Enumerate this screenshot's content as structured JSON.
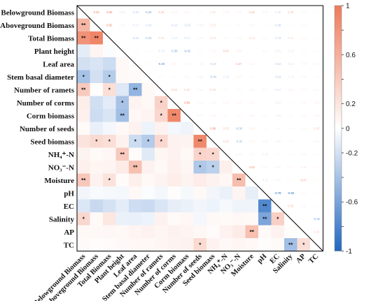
{
  "chart_data": {
    "type": "heatmap",
    "variables": [
      "Belowground Biomass",
      "Aboveground Biomass",
      "Total Biomass",
      "Plant height",
      "Leaf area",
      "Stem basal diameter",
      "Number of ramets",
      "Number of corms",
      "Corm biomass",
      "Number of seeds",
      "Seed biomass",
      "NH₄⁺-N",
      "NO₃⁻-N",
      "Moisture",
      "pH",
      "EC",
      "Salinity",
      "AP",
      "TC"
    ],
    "colorbar": {
      "min": -1,
      "max": 1,
      "ticks": [
        "1",
        "0.8",
        "0.6",
        "0.4",
        "0.2",
        "0",
        "-0.2",
        "-0.4",
        "-0.6",
        "-0.8",
        "-1"
      ],
      "low_color": "#2166c0",
      "mid_color": "#ffffff",
      "high_color": "#ee7a5a"
    },
    "upper_triangle": "coefficient labels",
    "lower_triangle": "colored cells with significance stars",
    "cells": [
      {
        "i": 1,
        "j": 0,
        "r": 0.55,
        "s": "**"
      },
      {
        "i": 2,
        "j": 0,
        "r": 0.82,
        "s": "**"
      },
      {
        "i": 2,
        "j": 1,
        "r": 0.92,
        "s": "**"
      },
      {
        "i": 3,
        "j": 0,
        "r": -0.12
      },
      {
        "i": 3,
        "j": 1,
        "r": 0.08
      },
      {
        "i": 3,
        "j": 2,
        "r": -0.02
      },
      {
        "i": 4,
        "j": 0,
        "r": -0.2
      },
      {
        "i": 4,
        "j": 1,
        "r": -0.17
      },
      {
        "i": 4,
        "j": 2,
        "r": -0.23
      },
      {
        "i": 4,
        "j": 3,
        "r": 0.05
      },
      {
        "i": 5,
        "j": 0,
        "r": -0.4,
        "s": "*"
      },
      {
        "i": 5,
        "j": 1,
        "r": -0.2
      },
      {
        "i": 5,
        "j": 2,
        "r": -0.33,
        "s": "*"
      },
      {
        "i": 5,
        "j": 3,
        "r": 0.05
      },
      {
        "i": 5,
        "j": 4,
        "r": 0.04
      },
      {
        "i": 6,
        "j": 0,
        "r": 0.4,
        "s": "**"
      },
      {
        "i": 6,
        "j": 1,
        "r": 0.02
      },
      {
        "i": 6,
        "j": 2,
        "r": 0.25,
        "s": "*"
      },
      {
        "i": 6,
        "j": 3,
        "r": -0.15
      },
      {
        "i": 6,
        "j": 4,
        "r": -0.49,
        "s": "**"
      },
      {
        "i": 6,
        "j": 5,
        "r": 0.05
      },
      {
        "i": 7,
        "j": 0,
        "r": 0.13
      },
      {
        "i": 7,
        "j": 1,
        "r": -0.21
      },
      {
        "i": 7,
        "j": 2,
        "r": -0.13
      },
      {
        "i": 7,
        "j": 3,
        "r": -0.39,
        "s": "*"
      },
      {
        "i": 7,
        "j": 4,
        "r": 0.09
      },
      {
        "i": 7,
        "j": 5,
        "r": 0.05
      },
      {
        "i": 7,
        "j": 6,
        "r": 0.34,
        "s": "*"
      },
      {
        "i": 8,
        "j": 0,
        "r": 0.11
      },
      {
        "i": 8,
        "j": 1,
        "r": -0.23
      },
      {
        "i": 8,
        "j": 2,
        "r": -0.17
      },
      {
        "i": 8,
        "j": 3,
        "r": -0.42,
        "s": "**"
      },
      {
        "i": 8,
        "j": 4,
        "r": 0.06
      },
      {
        "i": 8,
        "j": 5,
        "r": 0.08
      },
      {
        "i": 8,
        "j": 6,
        "r": 0.3,
        "s": "*"
      },
      {
        "i": 8,
        "j": 7,
        "r": 0.89,
        "s": "**"
      },
      {
        "i": 9,
        "j": 0,
        "r": 0.04
      },
      {
        "i": 9,
        "j": 1,
        "r": -0.1
      },
      {
        "i": 9,
        "j": 2,
        "r": -0.05
      },
      {
        "i": 9,
        "j": 3,
        "r": 0.05
      },
      {
        "i": 9,
        "j": 4,
        "r": 0.1
      },
      {
        "i": 9,
        "j": 5,
        "r": -0.08
      },
      {
        "i": 9,
        "j": 6,
        "r": 0.1
      },
      {
        "i": 9,
        "j": 7,
        "r": -0.05
      },
      {
        "i": 9,
        "j": 8,
        "r": -0.07
      },
      {
        "i": 10,
        "j": 0,
        "r": 0.2
      },
      {
        "i": 10,
        "j": 1,
        "r": 0.27,
        "s": "*"
      },
      {
        "i": 10,
        "j": 2,
        "r": 0.24,
        "s": "*"
      },
      {
        "i": 10,
        "j": 3,
        "r": 0.1
      },
      {
        "i": 10,
        "j": 4,
        "r": -0.23,
        "s": "*"
      },
      {
        "i": 10,
        "j": 5,
        "r": -0.34,
        "s": "*"
      },
      {
        "i": 10,
        "j": 6,
        "r": 0.29,
        "s": "*"
      },
      {
        "i": 10,
        "j": 7,
        "r": 0.1
      },
      {
        "i": 10,
        "j": 8,
        "r": 0.09
      },
      {
        "i": 10,
        "j": 9,
        "r": 0.89,
        "s": "**"
      },
      {
        "i": 11,
        "j": 0,
        "r": 0.09
      },
      {
        "i": 11,
        "j": 1,
        "r": 0.04
      },
      {
        "i": 11,
        "j": 2,
        "r": 0.06
      },
      {
        "i": 11,
        "j": 3,
        "r": 0.4,
        "s": "**"
      },
      {
        "i": 11,
        "j": 4,
        "r": 0.03
      },
      {
        "i": 11,
        "j": 5,
        "r": -0.14
      },
      {
        "i": 11,
        "j": 6,
        "r": 0.07
      },
      {
        "i": 11,
        "j": 7,
        "r": 0.1
      },
      {
        "i": 11,
        "j": 8,
        "r": 0.05
      },
      {
        "i": 11,
        "j": 9,
        "r": 0.32,
        "s": "*"
      },
      {
        "i": 11,
        "j": 10,
        "r": 0.3,
        "s": "*"
      },
      {
        "i": 12,
        "j": 0,
        "r": 0.11
      },
      {
        "i": 12,
        "j": 1,
        "r": 0.07
      },
      {
        "i": 12,
        "j": 2,
        "r": 0.08
      },
      {
        "i": 12,
        "j": 3,
        "r": 0.15
      },
      {
        "i": 12,
        "j": 4,
        "r": 0.47,
        "s": "**"
      },
      {
        "i": 12,
        "j": 5,
        "r": 0.1
      },
      {
        "i": 12,
        "j": 6,
        "r": 0.05
      },
      {
        "i": 12,
        "j": 7,
        "r": 0.11
      },
      {
        "i": 12,
        "j": 8,
        "r": 0.07
      },
      {
        "i": 12,
        "j": 9,
        "r": -0.36,
        "s": "*"
      },
      {
        "i": 12,
        "j": 10,
        "r": -0.3,
        "s": "*"
      },
      {
        "i": 12,
        "j": 11,
        "r": 0.12
      },
      {
        "i": 13,
        "j": 0,
        "r": 0.42,
        "s": "**"
      },
      {
        "i": 13,
        "j": 1,
        "r": 0.1
      },
      {
        "i": 13,
        "j": 2,
        "r": 0.22,
        "s": "*"
      },
      {
        "i": 13,
        "j": 3,
        "r": 0.03
      },
      {
        "i": 13,
        "j": 4,
        "r": 0.12
      },
      {
        "i": 13,
        "j": 5,
        "r": 0.05
      },
      {
        "i": 13,
        "j": 6,
        "r": 0.09
      },
      {
        "i": 13,
        "j": 7,
        "r": 0.13
      },
      {
        "i": 13,
        "j": 8,
        "r": 0.09
      },
      {
        "i": 13,
        "j": 9,
        "r": 0.14
      },
      {
        "i": 13,
        "j": 10,
        "r": 0.1
      },
      {
        "i": 13,
        "j": 11,
        "r": 0.06
      },
      {
        "i": 13,
        "j": 12,
        "r": 0.5,
        "s": "**"
      },
      {
        "i": 14,
        "j": 0,
        "r": -0.06
      },
      {
        "i": 14,
        "j": 1,
        "r": -0.03
      },
      {
        "i": 14,
        "j": 2,
        "r": -0.04
      },
      {
        "i": 14,
        "j": 3,
        "r": -0.05
      },
      {
        "i": 14,
        "j": 4,
        "r": 0.05
      },
      {
        "i": 14,
        "j": 5,
        "r": -0.02
      },
      {
        "i": 14,
        "j": 6,
        "r": -0.05
      },
      {
        "i": 14,
        "j": 7,
        "r": 0.02
      },
      {
        "i": 14,
        "j": 8,
        "r": -0.04
      },
      {
        "i": 14,
        "j": 9,
        "r": 0.05
      },
      {
        "i": 14,
        "j": 10,
        "r": -0.06
      },
      {
        "i": 14,
        "j": 11,
        "r": -0.09
      },
      {
        "i": 14,
        "j": 12,
        "r": 0.08
      },
      {
        "i": 14,
        "j": 13,
        "r": -0.11
      },
      {
        "i": 15,
        "j": 0,
        "r": -0.16
      },
      {
        "i": 15,
        "j": 1,
        "r": -0.25
      },
      {
        "i": 15,
        "j": 2,
        "r": -0.19
      },
      {
        "i": 15,
        "j": 3,
        "r": -0.12
      },
      {
        "i": 15,
        "j": 4,
        "r": -0.22
      },
      {
        "i": 15,
        "j": 5,
        "r": -0.24
      },
      {
        "i": 15,
        "j": 6,
        "r": -0.17
      },
      {
        "i": 15,
        "j": 7,
        "r": -0.11
      },
      {
        "i": 15,
        "j": 8,
        "r": -0.09
      },
      {
        "i": 15,
        "j": 9,
        "r": -0.06
      },
      {
        "i": 15,
        "j": 10,
        "r": -0.08
      },
      {
        "i": 15,
        "j": 11,
        "r": -0.04
      },
      {
        "i": 15,
        "j": 12,
        "r": -0.07
      },
      {
        "i": 15,
        "j": 13,
        "r": -0.07
      },
      {
        "i": 15,
        "j": 14,
        "r": -0.78,
        "s": "**"
      },
      {
        "i": 16,
        "j": 0,
        "r": 0.3,
        "s": "*"
      },
      {
        "i": 16,
        "j": 1,
        "r": 0.04
      },
      {
        "i": 16,
        "j": 2,
        "r": 0.18
      },
      {
        "i": 16,
        "j": 3,
        "r": -0.09
      },
      {
        "i": 16,
        "j": 4,
        "r": -0.1
      },
      {
        "i": 16,
        "j": 5,
        "r": -0.08
      },
      {
        "i": 16,
        "j": 6,
        "r": 0.1
      },
      {
        "i": 16,
        "j": 7,
        "r": 0.04
      },
      {
        "i": 16,
        "j": 8,
        "r": 0.06
      },
      {
        "i": 16,
        "j": 9,
        "r": -0.05
      },
      {
        "i": 16,
        "j": 10,
        "r": 0.05
      },
      {
        "i": 16,
        "j": 11,
        "r": 0.04
      },
      {
        "i": 16,
        "j": 12,
        "r": 0.06
      },
      {
        "i": 16,
        "j": 13,
        "r": 0.05
      },
      {
        "i": 16,
        "j": 14,
        "r": -0.59,
        "s": "**"
      },
      {
        "i": 16,
        "j": 15,
        "r": 0.35,
        "s": "*"
      },
      {
        "i": 17,
        "j": 0,
        "r": 0.05
      },
      {
        "i": 17,
        "j": 1,
        "r": 0.05
      },
      {
        "i": 17,
        "j": 2,
        "r": 0.06
      },
      {
        "i": 17,
        "j": 3,
        "r": 0.05
      },
      {
        "i": 17,
        "j": 4,
        "r": 0.08
      },
      {
        "i": 17,
        "j": 5,
        "r": 0.1
      },
      {
        "i": 17,
        "j": 6,
        "r": 0.07
      },
      {
        "i": 17,
        "j": 7,
        "r": 0.1
      },
      {
        "i": 17,
        "j": 8,
        "r": 0.08
      },
      {
        "i": 17,
        "j": 9,
        "r": 0.06
      },
      {
        "i": 17,
        "j": 10,
        "r": 0.03
      },
      {
        "i": 17,
        "j": 11,
        "r": 0.1
      },
      {
        "i": 17,
        "j": 12,
        "r": 0.15
      },
      {
        "i": 17,
        "j": 13,
        "r": 0.47,
        "s": "**"
      },
      {
        "i": 17,
        "j": 14,
        "r": 0.04
      },
      {
        "i": 17,
        "j": 15,
        "r": 0.1
      },
      {
        "i": 17,
        "j": 16,
        "r": 0.02
      },
      {
        "i": 18,
        "j": 0,
        "r": 0.04
      },
      {
        "i": 18,
        "j": 1,
        "r": 0.02
      },
      {
        "i": 18,
        "j": 2,
        "r": 0.03
      },
      {
        "i": 18,
        "j": 3,
        "r": 0.05
      },
      {
        "i": 18,
        "j": 4,
        "r": 0.06
      },
      {
        "i": 18,
        "j": 5,
        "r": 0.05
      },
      {
        "i": 18,
        "j": 6,
        "r": 0.07
      },
      {
        "i": 18,
        "j": 7,
        "r": 0.09
      },
      {
        "i": 18,
        "j": 8,
        "r": 0.1
      },
      {
        "i": 18,
        "j": 9,
        "r": 0.28,
        "s": "*"
      },
      {
        "i": 18,
        "j": 10,
        "r": 0.1
      },
      {
        "i": 18,
        "j": 11,
        "r": 0.05
      },
      {
        "i": 18,
        "j": 12,
        "r": 0.07
      },
      {
        "i": 18,
        "j": 13,
        "r": 0.05
      },
      {
        "i": 18,
        "j": 14,
        "r": 0.02
      },
      {
        "i": 18,
        "j": 15,
        "r": 0.04
      },
      {
        "i": 18,
        "j": 16,
        "r": -0.42,
        "s": "**"
      },
      {
        "i": 18,
        "j": 17,
        "r": 0.25,
        "s": "*"
      }
    ]
  }
}
